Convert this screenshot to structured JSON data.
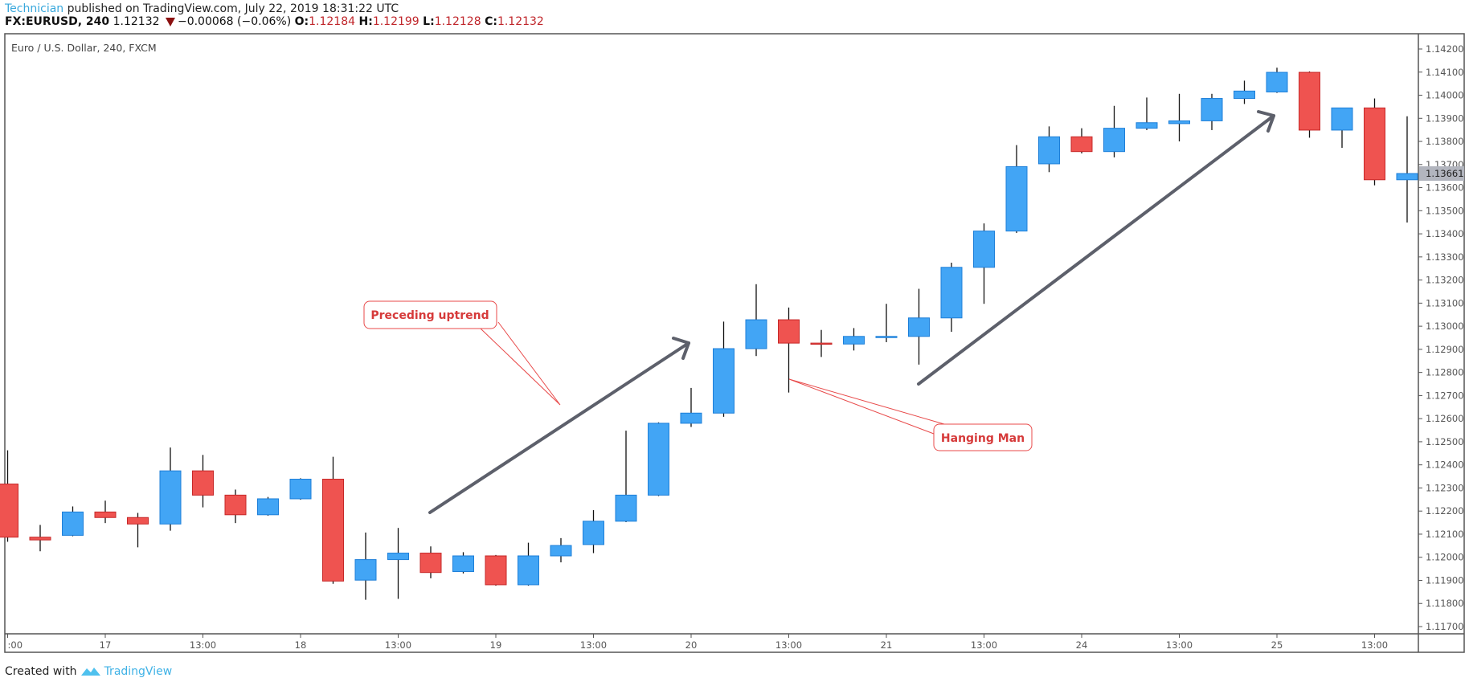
{
  "header": {
    "author": "Technician",
    "published": "published on TradingView.com, July 22, 2019 18:31:22 UTC",
    "symbol": "FX:EURUSD, 240",
    "last": "1.12132",
    "change": "−0.00068 (−0.06%)",
    "o_label": "O:",
    "o_value": "1.12184",
    "h_label": "H:",
    "h_value": "1.12199",
    "l_label": "L:",
    "l_value": "1.12128",
    "c_label": "C:",
    "c_value": "1.12132",
    "change_direction_icon": "triangle-down"
  },
  "pane_title": "Euro / U.S. Dollar, 240, FXCM",
  "footer": {
    "prefix": "Created with",
    "brand": "TradingView",
    "logo_icon": "tradingview-cloud-logo"
  },
  "colors": {
    "up": "#42a5f5",
    "up_border": "#1e7fd8",
    "down": "#ef5350",
    "down_border": "#c62828",
    "arrow": "#5d606b",
    "callout": "#e84a4a"
  },
  "chart_data": {
    "type": "candlestick",
    "title": "Euro / U.S. Dollar, 240, FXCM",
    "ylim": [
      1.1166,
      1.1427
    ],
    "y_ticks": [
      "1.14200",
      "1.14100",
      "1.14000",
      "1.13900",
      "1.13800",
      "1.13700",
      "1.13600",
      "1.13500",
      "1.13400",
      "1.13300",
      "1.13200",
      "1.13100",
      "1.13000",
      "1.12900",
      "1.12800",
      "1.12700",
      "1.12600",
      "1.12500",
      "1.12400",
      "1.12300",
      "1.12200",
      "1.12100",
      "1.12000",
      "1.11900",
      "1.11800",
      "1.11700"
    ],
    "last_price_label": "1.13661",
    "x_tick_labels": [
      ":00",
      "17",
      "13:00",
      "18",
      "13:00",
      "19",
      "13:00",
      "20",
      "13:00",
      "21",
      "13:00",
      "24",
      "13:00",
      "25",
      "13:00"
    ],
    "x_tick_every_n_candles": 3,
    "ohlc_fields": [
      "open",
      "high",
      "low",
      "close"
    ],
    "candles": [
      [
        1.12317,
        1.12463,
        1.12067,
        1.12087
      ],
      [
        1.12087,
        1.1214,
        1.12026,
        1.12075
      ],
      [
        1.12095,
        1.1222,
        1.12091,
        1.12196
      ],
      [
        1.12196,
        1.12245,
        1.12148,
        1.12172
      ],
      [
        1.12172,
        1.12192,
        1.12043,
        1.12144
      ],
      [
        1.12144,
        1.12475,
        1.12115,
        1.12374
      ],
      [
        1.12374,
        1.12443,
        1.12216,
        1.12269
      ],
      [
        1.12269,
        1.12293,
        1.12148,
        1.12184
      ],
      [
        1.12184,
        1.12261,
        1.1218,
        1.12253
      ],
      [
        1.12253,
        1.12342,
        1.12249,
        1.12338
      ],
      [
        1.12338,
        1.12435,
        1.11885,
        1.11897
      ],
      [
        1.11901,
        1.12107,
        1.11816,
        1.1199
      ],
      [
        1.1199,
        1.12127,
        1.1182,
        1.12018
      ],
      [
        1.12018,
        1.12047,
        1.11909,
        1.11934
      ],
      [
        1.11938,
        1.12022,
        1.1193,
        1.12006
      ],
      [
        1.12006,
        1.1201,
        1.11877,
        1.11881
      ],
      [
        1.11881,
        1.12063,
        1.11877,
        1.12006
      ],
      [
        1.12006,
        1.12083,
        1.11978,
        1.12051
      ],
      [
        1.12055,
        1.12204,
        1.12018,
        1.12156
      ],
      [
        1.12156,
        1.12548,
        1.12152,
        1.12269
      ],
      [
        1.12269,
        1.12584,
        1.12265,
        1.1258
      ],
      [
        1.1258,
        1.12733,
        1.12564,
        1.12624
      ],
      [
        1.12624,
        1.1302,
        1.12608,
        1.12903
      ],
      [
        1.12903,
        1.13182,
        1.12871,
        1.13028
      ],
      [
        1.13028,
        1.13081,
        1.12713,
        1.12927
      ],
      [
        1.12927,
        1.12984,
        1.12867,
        1.12923
      ],
      [
        1.12923,
        1.12992,
        1.12895,
        1.12956
      ],
      [
        1.12952,
        1.13097,
        1.12931,
        1.12956
      ],
      [
        1.12956,
        1.13162,
        1.12834,
        1.13036
      ],
      [
        1.13036,
        1.13275,
        1.12976,
        1.13255
      ],
      [
        1.13255,
        1.13445,
        1.13097,
        1.13412
      ],
      [
        1.13412,
        1.13784,
        1.13404,
        1.13691
      ],
      [
        1.13703,
        1.13865,
        1.13667,
        1.1382
      ],
      [
        1.1382,
        1.13857,
        1.13748,
        1.13756
      ],
      [
        1.13756,
        1.13954,
        1.13731,
        1.13857
      ],
      [
        1.13857,
        1.1399,
        1.13849,
        1.13881
      ],
      [
        1.13877,
        1.14006,
        1.138,
        1.13889
      ],
      [
        1.13889,
        1.14006,
        1.13849,
        1.13986
      ],
      [
        1.13986,
        1.14063,
        1.13962,
        1.14018
      ],
      [
        1.14014,
        1.14119,
        1.1401,
        1.14099
      ],
      [
        1.14099,
        1.14103,
        1.13816,
        1.13849
      ],
      [
        1.13849,
        1.13945,
        1.13772,
        1.13945
      ],
      [
        1.13945,
        1.13986,
        1.1361,
        1.13634
      ],
      [
        1.13634,
        1.13909,
        1.13449,
        1.13661
      ]
    ],
    "annotations": [
      {
        "text": "Preceding uptrend",
        "type": "callout",
        "points_to_candle": 15
      },
      {
        "text": "Hanging Man",
        "type": "callout",
        "points_to_candle": 24
      },
      {
        "type": "arrow",
        "from_candle": 13,
        "to_candle": 21
      },
      {
        "type": "arrow",
        "from_candle": 28,
        "to_candle": 39
      }
    ]
  }
}
